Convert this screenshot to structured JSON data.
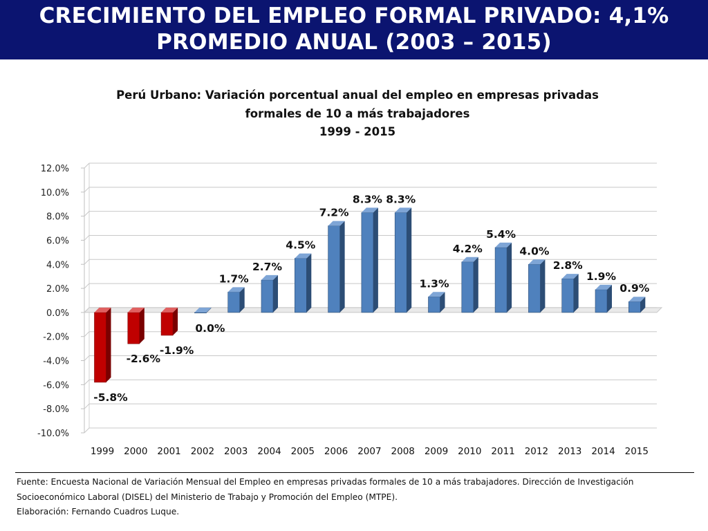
{
  "banner": {
    "line1": "CRECIMIENTO DEL EMPLEO FORMAL PRIVADO: 4,1%",
    "line2": "PROMEDIO ANUAL (2003 – 2015)"
  },
  "chart_data": {
    "type": "bar",
    "title_lines": [
      "Perú Urbano: Variación porcentual anual del empleo en empresas privadas",
      "formales de 10 a más trabajadores",
      "1999 - 2015"
    ],
    "categories": [
      "1999",
      "2000",
      "2001",
      "2002",
      "2003",
      "2004",
      "2005",
      "2006",
      "2007",
      "2008",
      "2009",
      "2010",
      "2011",
      "2012",
      "2013",
      "2014",
      "2015"
    ],
    "values": [
      -5.8,
      -2.6,
      -1.9,
      0.0,
      1.7,
      2.7,
      4.5,
      7.2,
      8.3,
      8.3,
      1.3,
      4.2,
      5.4,
      4.0,
      2.8,
      1.9,
      0.9
    ],
    "data_labels": [
      "-5.8%",
      "-2.6%",
      "-1.9%",
      "0.0%",
      "1.7%",
      "2.7%",
      "4.5%",
      "7.2%",
      "8.3%",
      "8.3%",
      "1.3%",
      "4.2%",
      "5.4%",
      "4.0%",
      "2.8%",
      "1.9%",
      "0.9%"
    ],
    "y_ticks": [
      "12.0%",
      "10.0%",
      "8.0%",
      "6.0%",
      "4.0%",
      "2.0%",
      "0.0%",
      "-2.0%",
      "-4.0%",
      "-6.0%",
      "-8.0%",
      "-10.0%"
    ],
    "ylim": [
      -10,
      12
    ],
    "grid": true,
    "colors": {
      "negative": "#c00000",
      "positive": "#4f81bd"
    }
  },
  "footnote": {
    "line1": "Fuente: Encuesta Nacional de Variación Mensual del Empleo en empresas privadas formales de 10 a más trabajadores. Dirección de Investigación",
    "line2": "Socioeconómico Laboral (DISEL) del Ministerio de Trabajo y Promoción del Empleo (MTPE).",
    "line3": "Elaboración: Fernando Cuadros Luque."
  }
}
